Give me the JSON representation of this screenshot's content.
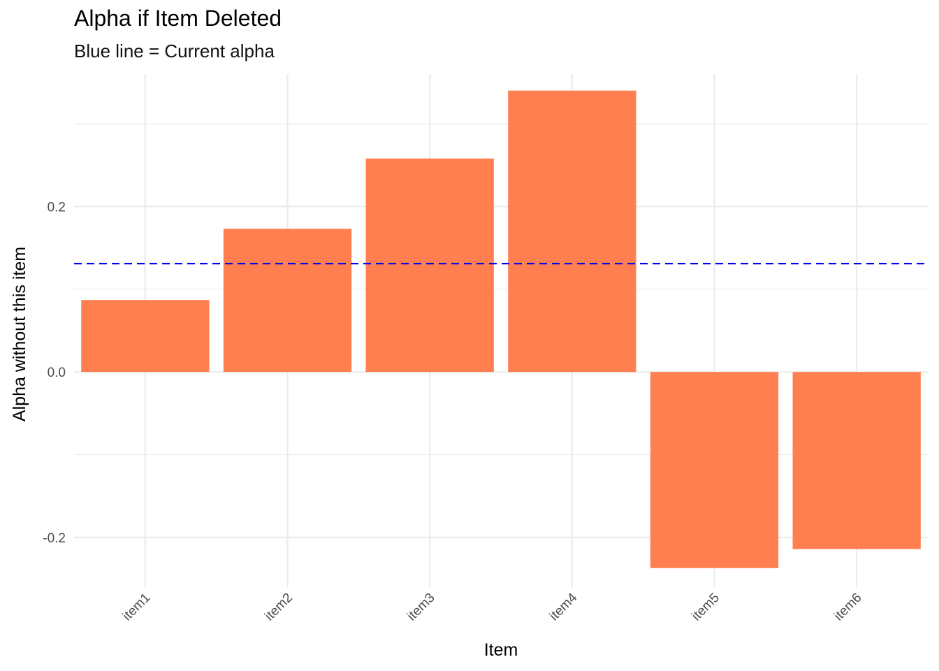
{
  "chart_data": {
    "type": "bar",
    "title": "Alpha if Item Deleted",
    "subtitle": "Blue line = Current alpha",
    "xlabel": "Item",
    "ylabel": "Alpha without this item",
    "categories": [
      "item1",
      "item2",
      "item3",
      "item4",
      "item5",
      "item6"
    ],
    "values": [
      0.087,
      0.173,
      0.258,
      0.34,
      -0.237,
      -0.214
    ],
    "reference_line": {
      "value": 0.131,
      "color": "#0000ee",
      "style": "dashed"
    },
    "ylim": [
      -0.26,
      0.36
    ],
    "yticks": [
      -0.2,
      0.0,
      0.2
    ],
    "ytick_labels": [
      "-0.2",
      "0.0",
      "0.2"
    ],
    "bar_color": "#ff7f50",
    "grid": true
  }
}
